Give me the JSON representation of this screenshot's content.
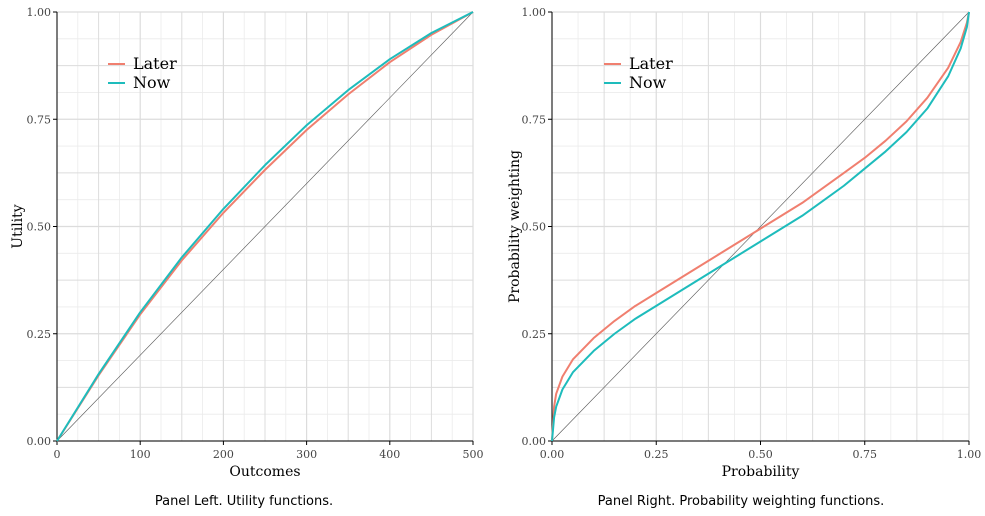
{
  "colors": {
    "later": "#F07F6F",
    "now": "#1EBCBC",
    "grid_major": "#DCDCDC",
    "grid_minor": "#EBEBEB",
    "diagonal": "#555555",
    "axis": "#000000"
  },
  "chart_data": [
    {
      "type": "line",
      "caption": "Panel Left. Utility functions.",
      "xlabel": "Outcomes",
      "ylabel": "Utility",
      "xlim": [
        0,
        500
      ],
      "ylim": [
        0,
        1
      ],
      "x_ticks": [
        0,
        100,
        200,
        300,
        400,
        500
      ],
      "x_tick_labels": [
        "0",
        "100",
        "200",
        "300",
        "400",
        "500"
      ],
      "y_ticks": [
        0,
        0.25,
        0.5,
        0.75,
        1
      ],
      "y_tick_labels": [
        "0.00",
        "0.25",
        "0.50",
        "0.75",
        "1.00"
      ],
      "grid": true,
      "legend_position": "top-left",
      "reference_line": "identity-diagonal",
      "series": [
        {
          "name": "Later",
          "color": "#F07F6F",
          "x": [
            0,
            50,
            100,
            150,
            200,
            250,
            300,
            350,
            400,
            450,
            500
          ],
          "y": [
            0,
            0.153,
            0.295,
            0.421,
            0.532,
            0.632,
            0.725,
            0.808,
            0.883,
            0.947,
            1.0
          ]
        },
        {
          "name": "Now",
          "color": "#1EBCBC",
          "x": [
            0,
            50,
            100,
            150,
            200,
            250,
            300,
            350,
            400,
            450,
            500
          ],
          "y": [
            0,
            0.156,
            0.3,
            0.428,
            0.541,
            0.643,
            0.736,
            0.818,
            0.89,
            0.951,
            1.0
          ]
        }
      ]
    },
    {
      "type": "line",
      "caption": "Panel Right. Probability weighting functions.",
      "xlabel": "Probability",
      "ylabel": "Probability weighting",
      "xlim": [
        0,
        1
      ],
      "ylim": [
        0,
        1
      ],
      "x_ticks": [
        0,
        0.25,
        0.5,
        0.75,
        1
      ],
      "x_tick_labels": [
        "0.00",
        "0.25",
        "0.50",
        "0.75",
        "1.00"
      ],
      "y_ticks": [
        0,
        0.25,
        0.5,
        0.75,
        1
      ],
      "y_tick_labels": [
        "0.00",
        "0.25",
        "0.50",
        "0.75",
        "1.00"
      ],
      "grid": true,
      "legend_position": "top-left",
      "reference_line": "identity-diagonal",
      "series": [
        {
          "name": "Later",
          "color": "#F07F6F",
          "x": [
            0,
            0.005,
            0.01,
            0.025,
            0.05,
            0.1,
            0.15,
            0.2,
            0.25,
            0.3,
            0.35,
            0.4,
            0.45,
            0.5,
            0.55,
            0.6,
            0.65,
            0.7,
            0.75,
            0.8,
            0.85,
            0.9,
            0.95,
            0.98,
            0.995,
            1.0
          ],
          "y": [
            0,
            0.08,
            0.11,
            0.15,
            0.19,
            0.24,
            0.28,
            0.315,
            0.345,
            0.375,
            0.405,
            0.435,
            0.465,
            0.495,
            0.525,
            0.555,
            0.59,
            0.625,
            0.66,
            0.7,
            0.745,
            0.8,
            0.87,
            0.93,
            0.975,
            1.0
          ]
        },
        {
          "name": "Now",
          "color": "#1EBCBC",
          "x": [
            0,
            0.005,
            0.01,
            0.025,
            0.05,
            0.1,
            0.15,
            0.2,
            0.25,
            0.3,
            0.35,
            0.4,
            0.45,
            0.5,
            0.55,
            0.6,
            0.65,
            0.7,
            0.75,
            0.8,
            0.85,
            0.9,
            0.95,
            0.98,
            0.995,
            1.0
          ],
          "y": [
            0,
            0.055,
            0.08,
            0.12,
            0.16,
            0.21,
            0.25,
            0.285,
            0.315,
            0.345,
            0.375,
            0.405,
            0.435,
            0.465,
            0.495,
            0.525,
            0.56,
            0.595,
            0.635,
            0.675,
            0.72,
            0.775,
            0.85,
            0.915,
            0.965,
            1.0
          ]
        }
      ]
    }
  ]
}
